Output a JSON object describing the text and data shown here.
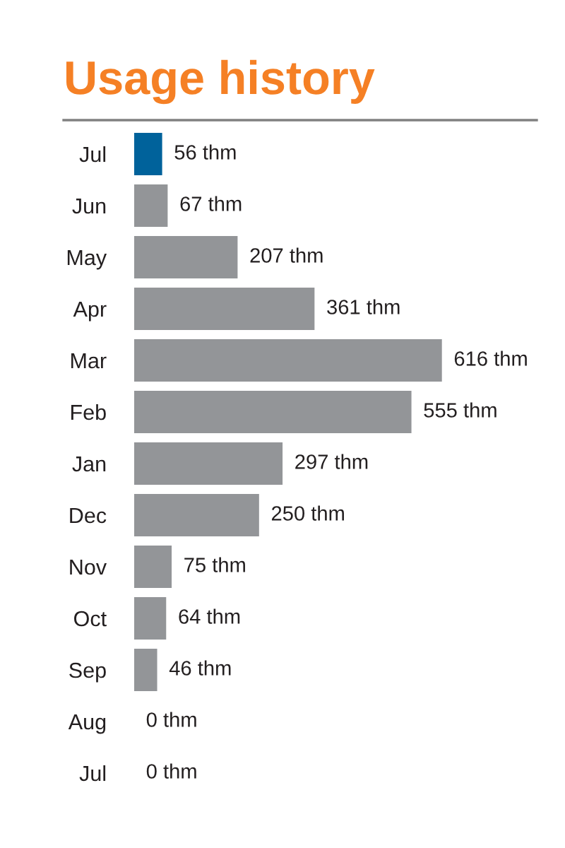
{
  "chart_data": {
    "type": "bar",
    "orientation": "horizontal",
    "title": "Usage history",
    "categories": [
      "Jul",
      "Jun",
      "May",
      "Apr",
      "Mar",
      "Feb",
      "Jan",
      "Dec",
      "Nov",
      "Oct",
      "Sep",
      "Aug",
      "Jul"
    ],
    "values": [
      56,
      67,
      207,
      361,
      616,
      555,
      297,
      250,
      75,
      64,
      46,
      0,
      0
    ],
    "colors": [
      "#00629b",
      "#939598",
      "#939598",
      "#939598",
      "#939598",
      "#939598",
      "#939598",
      "#939598",
      "#939598",
      "#939598",
      "#939598",
      "#939598",
      "#939598"
    ],
    "value_labels": [
      "56 thm",
      "67 thm",
      "207 thm",
      "361 thm",
      "616 thm",
      "555 thm",
      "297 thm",
      "250 thm",
      "75 thm",
      "64 thm",
      "46 thm",
      "0 thm",
      "0 thm"
    ]
  }
}
